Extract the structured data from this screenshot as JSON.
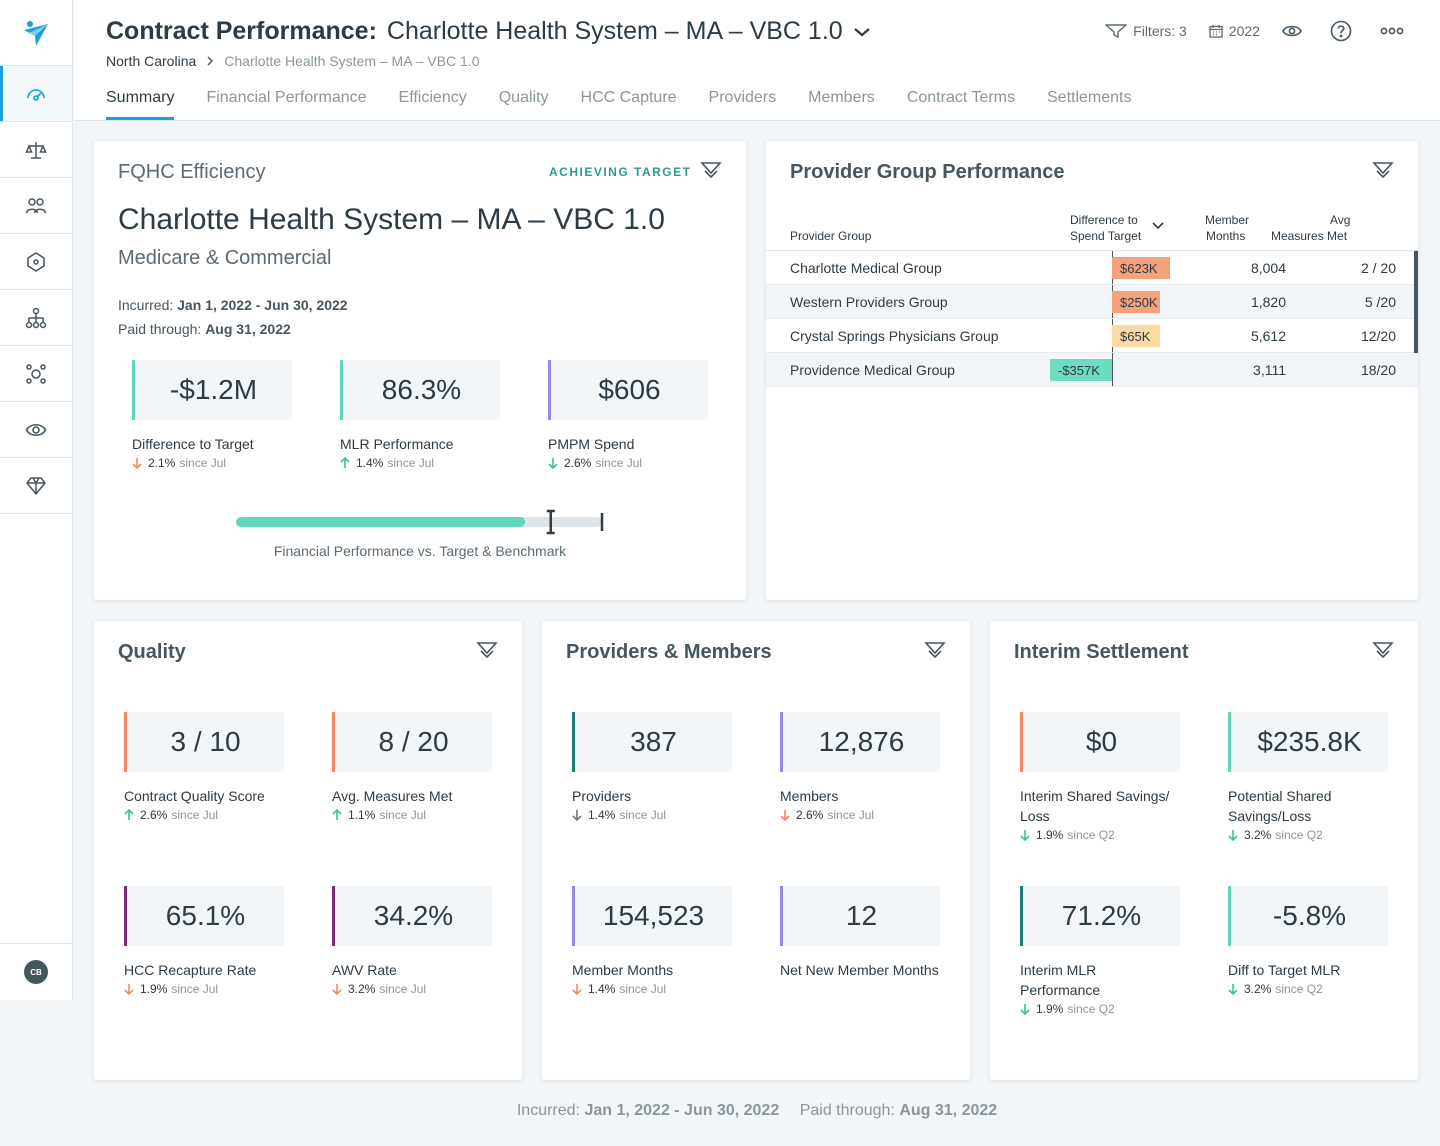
{
  "sidebar": {
    "items": [
      {
        "icon": "gauge-icon"
      },
      {
        "icon": "scale-icon"
      },
      {
        "icon": "users-icon"
      },
      {
        "icon": "network-icon"
      },
      {
        "icon": "hierarchy-icon"
      },
      {
        "icon": "hub-icon"
      },
      {
        "icon": "eye-icon"
      },
      {
        "icon": "diamond-icon"
      }
    ],
    "avatar": "CB"
  },
  "header": {
    "title": "Contract Performance:",
    "subtitle": "Charlotte Health System – MA – VBC 1.0",
    "breadcrumb": [
      "North Carolina",
      "Charlotte Health System – MA – VBC 1.0"
    ],
    "filters": "Filters: 3",
    "year": "2022",
    "tabs": [
      "Summary",
      "Financial Performance",
      "Efficiency",
      "Quality",
      "HCC Capture",
      "Providers",
      "Members",
      "Contract Terms",
      "Settlements"
    ],
    "active_tab": "Summary"
  },
  "efficiency": {
    "title": "FQHC Efficiency",
    "status": "ACHIEVING TARGET",
    "contract": "Charlotte Health System – MA – VBC 1.0",
    "line": "Medicare & Commercial",
    "incurred_label": "Incurred:",
    "incurred": "Jan 1, 2022 - Jun 30, 2022",
    "paid_label": "Paid through:",
    "paid": "Aug 31, 2022",
    "kpis": [
      {
        "value": "-$1.2M",
        "label": "Difference to Target",
        "delta": "2.1%",
        "since": "since Jul",
        "dir": "down",
        "color": "#5fd7bd",
        "arrow": "#f08660"
      },
      {
        "value": "86.3%",
        "label": "MLR Performance",
        "delta": "1.4%",
        "since": "since Jul",
        "dir": "up",
        "color": "#5fd7bd",
        "arrow": "#3bbf9c"
      },
      {
        "value": "$606",
        "label": "PMPM Spend",
        "delta": "2.6%",
        "since": "since Jul",
        "dir": "down",
        "color": "#9688de",
        "arrow": "#3bbf9c"
      }
    ],
    "progress": {
      "fill": 0.79,
      "target": 0.86,
      "label": "Financial Performance vs. Target & Benchmark"
    }
  },
  "provider_groups": {
    "title": "Provider Group Performance",
    "headers": {
      "group": "Provider Group",
      "diff_1": "Difference to",
      "diff_2": "Spend Target",
      "mm_1": "Member",
      "mm_2": "Months",
      "avg_1": "Avg",
      "avg_2": "Measures Met"
    },
    "rows": [
      {
        "name": "Charlotte Medical Group",
        "diff": "$623K",
        "value": 623,
        "months": "8,004",
        "met": "2 / 20",
        "color": "#f5a27c"
      },
      {
        "name": "Western Providers Group",
        "diff": "$250K",
        "value": 250,
        "months": "1,820",
        "met": "5 /20",
        "color": "#f5a27c"
      },
      {
        "name": "Crystal Springs Physicians Group",
        "diff": "$65K",
        "value": 65,
        "months": "5,612",
        "met": "12/20",
        "color": "#fbd9a2"
      },
      {
        "name": "Providence Medical Group",
        "diff": "-$357K",
        "value": -357,
        "months": "3,111",
        "met": "18/20",
        "color": "#6edcc1"
      }
    ]
  },
  "quality": {
    "title": "Quality",
    "kpis": [
      {
        "value": "3 / 10",
        "label": "Contract Quality Score",
        "delta": "2.6%",
        "since": "since Jul",
        "dir": "up",
        "color": "#f5875e",
        "arrow": "#3bbf9c"
      },
      {
        "value": "8 / 20",
        "label": "Avg. Measures Met",
        "delta": "1.1%",
        "since": "since Jul",
        "dir": "up",
        "color": "#f5875e",
        "arrow": "#3bbf9c"
      },
      {
        "value": "65.1%",
        "label": "HCC Recapture Rate",
        "delta": "1.9%",
        "since": "since Jul",
        "dir": "down",
        "color": "#7c2a7a",
        "arrow": "#f08660"
      },
      {
        "value": "34.2%",
        "label": "AWV Rate",
        "delta": "3.2%",
        "since": "since Jul",
        "dir": "down",
        "color": "#7c2a7a",
        "arrow": "#f08660"
      }
    ]
  },
  "providers_members": {
    "title": "Providers & Members",
    "kpis": [
      {
        "value": "387",
        "label": "Providers",
        "delta": "1.4%",
        "since": "since Jul",
        "dir": "down",
        "color": "#1f7d78",
        "arrow": "#6b7880"
      },
      {
        "value": "12,876",
        "label": "Members",
        "delta": "2.6%",
        "since": "since Jul",
        "dir": "down",
        "color": "#9688de",
        "arrow": "#f08660"
      },
      {
        "value": "154,523",
        "label": "Member Months",
        "delta": "1.4%",
        "since": "since Jul",
        "dir": "down",
        "color": "#9688de",
        "arrow": "#f08660"
      },
      {
        "value": "12",
        "label": "Net New Member Months",
        "delta": "",
        "since": "",
        "dir": "none",
        "color": "#9688de",
        "arrow": ""
      }
    ]
  },
  "settlement": {
    "title": "Interim Settlement",
    "kpis": [
      {
        "value": "$0",
        "label": "Interim Shared Savings/ Loss",
        "delta": "1.9%",
        "since": "since Q2",
        "dir": "down",
        "color": "#f5875e",
        "arrow": "#3bbf9c"
      },
      {
        "value": "$235.8K",
        "label": "Potential Shared Savings/Loss",
        "delta": "3.2%",
        "since": "since Q2",
        "dir": "down",
        "color": "#5fd7bd",
        "arrow": "#3bbf9c"
      },
      {
        "value": "71.2%",
        "label": "Interim MLR Performance",
        "delta": "1.9%",
        "since": "since Q2",
        "dir": "down",
        "color": "#1f7d78",
        "arrow": "#3bbf9c"
      },
      {
        "value": "-5.8%",
        "label": "Diff to Target MLR",
        "delta": "3.2%",
        "since": "since Q2",
        "dir": "down",
        "color": "#5fd7bd",
        "arrow": "#3bbf9c"
      }
    ]
  },
  "footer": {
    "incurred_label": "Incurred:",
    "incurred": "Jan 1, 2022 - Jun 30, 2022",
    "paid_label": "Paid through:",
    "paid": "Aug 31, 2022"
  }
}
